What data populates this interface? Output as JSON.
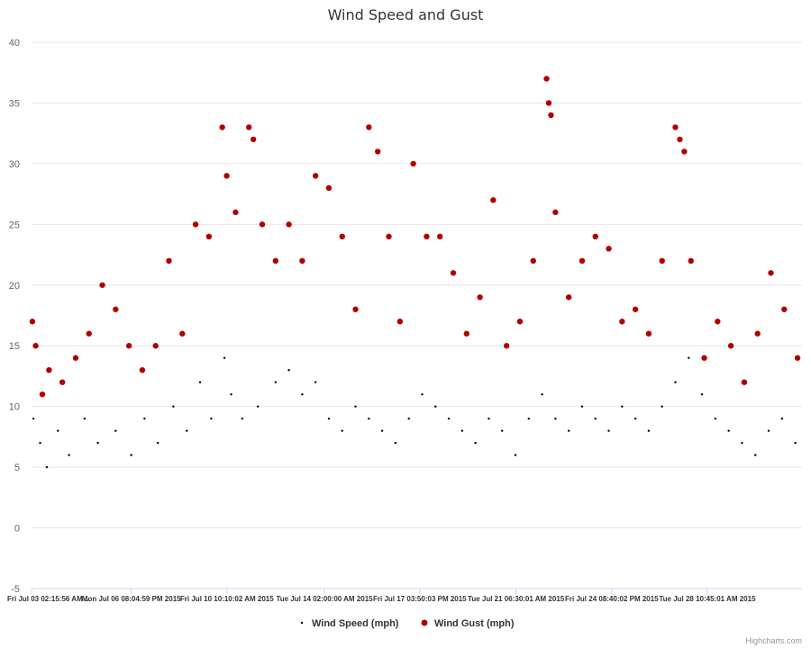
{
  "chart_data": {
    "type": "scatter",
    "title": "Wind Speed and Gust",
    "xlabel": "",
    "ylabel": "",
    "ylim": [
      -5,
      40
    ],
    "y_ticks": [
      -5,
      0,
      5,
      10,
      15,
      20,
      25,
      30,
      35,
      40
    ],
    "x_range": [
      "2015-07-03T02:15:56",
      "2015-07-31T23:59:59"
    ],
    "x_tick_labels": [
      {
        "date": "2015-07-03T02:15:56",
        "label": "Fri Jul 03 02:15:56 AM ..."
      },
      {
        "date": "2015-07-06T20:04:59",
        "label": "Mon Jul 06 08:04:59 PM 2015"
      },
      {
        "date": "2015-07-10T10:10:02",
        "label": "Fri Jul 10 10:10:02 AM 2015"
      },
      {
        "date": "2015-07-14T02:00:00",
        "label": "Tue Jul 14 02:00:00 AM 2015"
      },
      {
        "date": "2015-07-17T15:50:03",
        "label": "Fri Jul 17 03:50:03 PM 2015"
      },
      {
        "date": "2015-07-21T06:30:01",
        "label": "Tue Jul 21 06:30:01 AM 2015"
      },
      {
        "date": "2015-07-24T20:40:02",
        "label": "Fri Jul 24 08:40:02 PM 2015"
      },
      {
        "date": "2015-07-28T10:45:01",
        "label": "Tue Jul 28 10:45:01 AM 2015"
      }
    ],
    "grid": true,
    "legend_position": "bottom-center",
    "series": [
      {
        "name": "Wind Speed (mph)",
        "color": "#000000",
        "marker": "small-dot",
        "points": [
          {
            "x": "2015-07-03T04:00:00",
            "y": 9
          },
          {
            "x": "2015-07-03T10:00:00",
            "y": 7
          },
          {
            "x": "2015-07-03T16:00:00",
            "y": 5
          },
          {
            "x": "2015-07-04T02:00:00",
            "y": 8
          },
          {
            "x": "2015-07-04T12:00:00",
            "y": 6
          },
          {
            "x": "2015-07-05T02:00:00",
            "y": 9
          },
          {
            "x": "2015-07-05T14:00:00",
            "y": 7
          },
          {
            "x": "2015-07-06T06:00:00",
            "y": 8
          },
          {
            "x": "2015-07-06T20:00:00",
            "y": 6
          },
          {
            "x": "2015-07-07T08:00:00",
            "y": 9
          },
          {
            "x": "2015-07-07T20:00:00",
            "y": 7
          },
          {
            "x": "2015-07-08T10:00:00",
            "y": 10
          },
          {
            "x": "2015-07-08T22:00:00",
            "y": 8
          },
          {
            "x": "2015-07-09T10:00:00",
            "y": 12
          },
          {
            "x": "2015-07-09T20:00:00",
            "y": 9
          },
          {
            "x": "2015-07-10T08:00:00",
            "y": 14
          },
          {
            "x": "2015-07-10T14:00:00",
            "y": 11
          },
          {
            "x": "2015-07-11T00:00:00",
            "y": 9
          },
          {
            "x": "2015-07-11T14:00:00",
            "y": 10
          },
          {
            "x": "2015-07-12T06:00:00",
            "y": 12
          },
          {
            "x": "2015-07-12T18:00:00",
            "y": 13
          },
          {
            "x": "2015-07-13T06:00:00",
            "y": 11
          },
          {
            "x": "2015-07-13T18:00:00",
            "y": 12
          },
          {
            "x": "2015-07-14T06:00:00",
            "y": 9
          },
          {
            "x": "2015-07-14T18:00:00",
            "y": 8
          },
          {
            "x": "2015-07-15T06:00:00",
            "y": 10
          },
          {
            "x": "2015-07-15T18:00:00",
            "y": 9
          },
          {
            "x": "2015-07-16T06:00:00",
            "y": 8
          },
          {
            "x": "2015-07-16T18:00:00",
            "y": 7
          },
          {
            "x": "2015-07-17T06:00:00",
            "y": 9
          },
          {
            "x": "2015-07-17T18:00:00",
            "y": 11
          },
          {
            "x": "2015-07-18T06:00:00",
            "y": 10
          },
          {
            "x": "2015-07-18T18:00:00",
            "y": 9
          },
          {
            "x": "2015-07-19T06:00:00",
            "y": 8
          },
          {
            "x": "2015-07-19T18:00:00",
            "y": 7
          },
          {
            "x": "2015-07-20T06:00:00",
            "y": 9
          },
          {
            "x": "2015-07-20T18:00:00",
            "y": 8
          },
          {
            "x": "2015-07-21T06:00:00",
            "y": 6
          },
          {
            "x": "2015-07-21T18:00:00",
            "y": 9
          },
          {
            "x": "2015-07-22T06:00:00",
            "y": 11
          },
          {
            "x": "2015-07-22T18:00:00",
            "y": 9
          },
          {
            "x": "2015-07-23T06:00:00",
            "y": 8
          },
          {
            "x": "2015-07-23T18:00:00",
            "y": 10
          },
          {
            "x": "2015-07-24T06:00:00",
            "y": 9
          },
          {
            "x": "2015-07-24T18:00:00",
            "y": 8
          },
          {
            "x": "2015-07-25T06:00:00",
            "y": 10
          },
          {
            "x": "2015-07-25T18:00:00",
            "y": 9
          },
          {
            "x": "2015-07-26T06:00:00",
            "y": 8
          },
          {
            "x": "2015-07-26T18:00:00",
            "y": 10
          },
          {
            "x": "2015-07-27T06:00:00",
            "y": 12
          },
          {
            "x": "2015-07-27T18:00:00",
            "y": 14
          },
          {
            "x": "2015-07-28T06:00:00",
            "y": 11
          },
          {
            "x": "2015-07-28T18:00:00",
            "y": 9
          },
          {
            "x": "2015-07-29T06:00:00",
            "y": 8
          },
          {
            "x": "2015-07-29T18:00:00",
            "y": 7
          },
          {
            "x": "2015-07-30T06:00:00",
            "y": 6
          },
          {
            "x": "2015-07-30T18:00:00",
            "y": 8
          },
          {
            "x": "2015-07-31T06:00:00",
            "y": 9
          },
          {
            "x": "2015-07-31T18:00:00",
            "y": 7
          }
        ]
      },
      {
        "name": "Wind Gust (mph)",
        "color": "#b20000",
        "marker": "circle",
        "points": [
          {
            "x": "2015-07-03T03:00:00",
            "y": 17
          },
          {
            "x": "2015-07-03T06:00:00",
            "y": 15
          },
          {
            "x": "2015-07-03T12:00:00",
            "y": 11
          },
          {
            "x": "2015-07-03T18:00:00",
            "y": 13
          },
          {
            "x": "2015-07-04T06:00:00",
            "y": 12
          },
          {
            "x": "2015-07-04T18:00:00",
            "y": 14
          },
          {
            "x": "2015-07-05T06:00:00",
            "y": 16
          },
          {
            "x": "2015-07-05T18:00:00",
            "y": 20
          },
          {
            "x": "2015-07-06T06:00:00",
            "y": 18
          },
          {
            "x": "2015-07-06T18:00:00",
            "y": 15
          },
          {
            "x": "2015-07-07T06:00:00",
            "y": 13
          },
          {
            "x": "2015-07-07T18:00:00",
            "y": 15
          },
          {
            "x": "2015-07-08T06:00:00",
            "y": 22
          },
          {
            "x": "2015-07-08T18:00:00",
            "y": 16
          },
          {
            "x": "2015-07-09T06:00:00",
            "y": 25
          },
          {
            "x": "2015-07-09T18:00:00",
            "y": 24
          },
          {
            "x": "2015-07-10T06:00:00",
            "y": 33
          },
          {
            "x": "2015-07-10T10:00:00",
            "y": 29
          },
          {
            "x": "2015-07-10T18:00:00",
            "y": 26
          },
          {
            "x": "2015-07-11T06:00:00",
            "y": 33
          },
          {
            "x": "2015-07-11T10:00:00",
            "y": 32
          },
          {
            "x": "2015-07-11T18:00:00",
            "y": 25
          },
          {
            "x": "2015-07-12T06:00:00",
            "y": 22
          },
          {
            "x": "2015-07-12T18:00:00",
            "y": 25
          },
          {
            "x": "2015-07-13T06:00:00",
            "y": 22
          },
          {
            "x": "2015-07-13T18:00:00",
            "y": 29
          },
          {
            "x": "2015-07-14T06:00:00",
            "y": 28
          },
          {
            "x": "2015-07-14T18:00:00",
            "y": 24
          },
          {
            "x": "2015-07-15T06:00:00",
            "y": 18
          },
          {
            "x": "2015-07-15T18:00:00",
            "y": 33
          },
          {
            "x": "2015-07-16T02:00:00",
            "y": 31
          },
          {
            "x": "2015-07-16T12:00:00",
            "y": 24
          },
          {
            "x": "2015-07-16T22:00:00",
            "y": 17
          },
          {
            "x": "2015-07-17T10:00:00",
            "y": 30
          },
          {
            "x": "2015-07-17T22:00:00",
            "y": 24
          },
          {
            "x": "2015-07-18T10:00:00",
            "y": 24
          },
          {
            "x": "2015-07-18T22:00:00",
            "y": 21
          },
          {
            "x": "2015-07-19T10:00:00",
            "y": 16
          },
          {
            "x": "2015-07-19T22:00:00",
            "y": 19
          },
          {
            "x": "2015-07-20T10:00:00",
            "y": 27
          },
          {
            "x": "2015-07-20T22:00:00",
            "y": 15
          },
          {
            "x": "2015-07-21T10:00:00",
            "y": 17
          },
          {
            "x": "2015-07-21T22:00:00",
            "y": 22
          },
          {
            "x": "2015-07-22T10:00:00",
            "y": 37
          },
          {
            "x": "2015-07-22T12:00:00",
            "y": 35
          },
          {
            "x": "2015-07-22T14:00:00",
            "y": 34
          },
          {
            "x": "2015-07-22T18:00:00",
            "y": 26
          },
          {
            "x": "2015-07-23T06:00:00",
            "y": 19
          },
          {
            "x": "2015-07-23T18:00:00",
            "y": 22
          },
          {
            "x": "2015-07-24T06:00:00",
            "y": 24
          },
          {
            "x": "2015-07-24T18:00:00",
            "y": 23
          },
          {
            "x": "2015-07-25T06:00:00",
            "y": 17
          },
          {
            "x": "2015-07-25T18:00:00",
            "y": 18
          },
          {
            "x": "2015-07-26T06:00:00",
            "y": 16
          },
          {
            "x": "2015-07-26T18:00:00",
            "y": 22
          },
          {
            "x": "2015-07-27T06:00:00",
            "y": 33
          },
          {
            "x": "2015-07-27T10:00:00",
            "y": 32
          },
          {
            "x": "2015-07-27T14:00:00",
            "y": 31
          },
          {
            "x": "2015-07-27T20:00:00",
            "y": 22
          },
          {
            "x": "2015-07-28T08:00:00",
            "y": 14
          },
          {
            "x": "2015-07-28T20:00:00",
            "y": 17
          },
          {
            "x": "2015-07-29T08:00:00",
            "y": 15
          },
          {
            "x": "2015-07-29T20:00:00",
            "y": 12
          },
          {
            "x": "2015-07-30T08:00:00",
            "y": 16
          },
          {
            "x": "2015-07-30T20:00:00",
            "y": 21
          },
          {
            "x": "2015-07-31T08:00:00",
            "y": 18
          },
          {
            "x": "2015-07-31T20:00:00",
            "y": 14
          }
        ]
      }
    ]
  },
  "credit": "Highcharts.com"
}
